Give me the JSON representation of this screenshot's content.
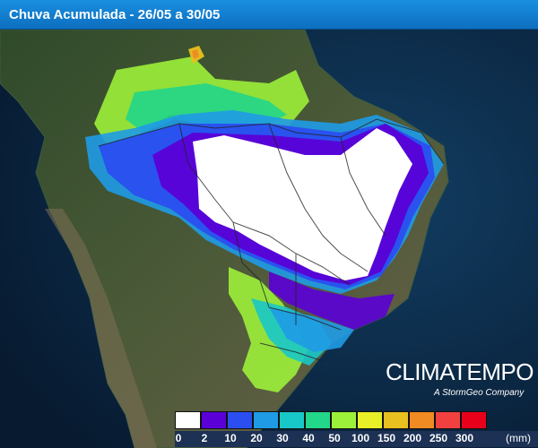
{
  "title": "Chuva Acumulada - 26/05 a 30/05",
  "brand": {
    "name": "CLIMATEMPO",
    "tagline": "A StormGeo Company"
  },
  "legend": {
    "unit": "(mm)",
    "classes": [
      {
        "label": "0",
        "color": "#ffffff"
      },
      {
        "label": "2",
        "color": "#5a00d6"
      },
      {
        "label": "10",
        "color": "#2a4ef0"
      },
      {
        "label": "20",
        "color": "#1f9be6"
      },
      {
        "label": "30",
        "color": "#18c8c8"
      },
      {
        "label": "40",
        "color": "#22d68a"
      },
      {
        "label": "50",
        "color": "#9cf03a"
      },
      {
        "label": "100",
        "color": "#e8f028"
      },
      {
        "label": "150",
        "color": "#e8c020"
      },
      {
        "label": "200",
        "color": "#f08a22"
      },
      {
        "label": "250",
        "color": "#f04040"
      },
      {
        "label": "300",
        "color": "#e8001a"
      }
    ]
  },
  "icons": [
    "climatempo-logo"
  ],
  "colors": {
    "title_bar": "#1a8fe0",
    "ocean": "#0b2a4a",
    "land": "#3a4a2e"
  }
}
